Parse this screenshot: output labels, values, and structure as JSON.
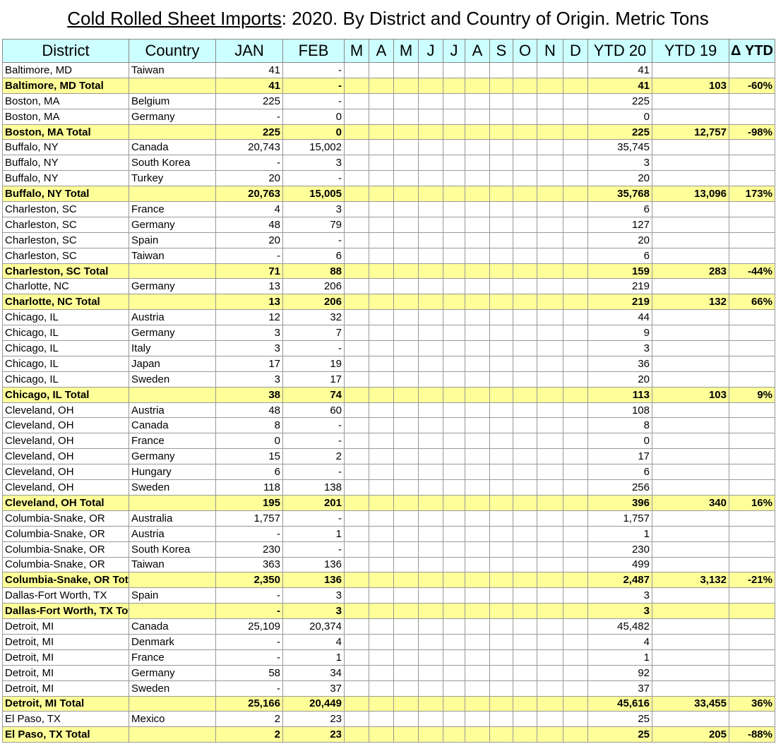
{
  "header": {
    "title_main": "Cold Rolled Sheet Imports",
    "title_rest": ": 2020. By District and Country of Origin. Metric Tons"
  },
  "table": {
    "columns": [
      "District",
      "Country",
      "JAN",
      "FEB",
      "M",
      "A",
      "M",
      "J",
      "J",
      "A",
      "S",
      "O",
      "N",
      "D",
      "YTD 20",
      "YTD 19",
      "Δ YTD"
    ],
    "rows": [
      {
        "district": "Baltimore, MD",
        "country": "Taiwan",
        "jan": "41",
        "feb": "-",
        "ytd20": "41"
      },
      {
        "district": "Baltimore, MD Total",
        "jan": "41",
        "feb": "-",
        "ytd20": "41",
        "ytd19": "103",
        "delta": "-60%",
        "total": true
      },
      {
        "district": "Boston, MA",
        "country": "Belgium",
        "jan": "225",
        "feb": "-",
        "ytd20": "225"
      },
      {
        "district": "Boston, MA",
        "country": "Germany",
        "jan": "-",
        "feb": "0",
        "ytd20": "0"
      },
      {
        "district": "Boston, MA Total",
        "jan": "225",
        "feb": "0",
        "ytd20": "225",
        "ytd19": "12,757",
        "delta": "-98%",
        "total": true
      },
      {
        "district": "Buffalo, NY",
        "country": "Canada",
        "jan": "20,743",
        "feb": "15,002",
        "ytd20": "35,745"
      },
      {
        "district": "Buffalo, NY",
        "country": "South Korea",
        "jan": "-",
        "feb": "3",
        "ytd20": "3"
      },
      {
        "district": "Buffalo, NY",
        "country": "Turkey",
        "jan": "20",
        "feb": "-",
        "ytd20": "20"
      },
      {
        "district": "Buffalo, NY Total",
        "jan": "20,763",
        "feb": "15,005",
        "ytd20": "35,768",
        "ytd19": "13,096",
        "delta": "173%",
        "total": true
      },
      {
        "district": "Charleston, SC",
        "country": "France",
        "jan": "4",
        "feb": "3",
        "ytd20": "6"
      },
      {
        "district": "Charleston, SC",
        "country": "Germany",
        "jan": "48",
        "feb": "79",
        "ytd20": "127"
      },
      {
        "district": "Charleston, SC",
        "country": "Spain",
        "jan": "20",
        "feb": "-",
        "ytd20": "20"
      },
      {
        "district": "Charleston, SC",
        "country": "Taiwan",
        "jan": "-",
        "feb": "6",
        "ytd20": "6"
      },
      {
        "district": "Charleston, SC Total",
        "jan": "71",
        "feb": "88",
        "ytd20": "159",
        "ytd19": "283",
        "delta": "-44%",
        "total": true
      },
      {
        "district": "Charlotte, NC",
        "country": "Germany",
        "jan": "13",
        "feb": "206",
        "ytd20": "219"
      },
      {
        "district": "Charlotte, NC Total",
        "jan": "13",
        "feb": "206",
        "ytd20": "219",
        "ytd19": "132",
        "delta": "66%",
        "total": true
      },
      {
        "district": "Chicago, IL",
        "country": "Austria",
        "jan": "12",
        "feb": "32",
        "ytd20": "44"
      },
      {
        "district": "Chicago, IL",
        "country": "Germany",
        "jan": "3",
        "feb": "7",
        "ytd20": "9"
      },
      {
        "district": "Chicago, IL",
        "country": "Italy",
        "jan": "3",
        "feb": "-",
        "ytd20": "3"
      },
      {
        "district": "Chicago, IL",
        "country": "Japan",
        "jan": "17",
        "feb": "19",
        "ytd20": "36"
      },
      {
        "district": "Chicago, IL",
        "country": "Sweden",
        "jan": "3",
        "feb": "17",
        "ytd20": "20"
      },
      {
        "district": "Chicago, IL Total",
        "jan": "38",
        "feb": "74",
        "ytd20": "113",
        "ytd19": "103",
        "delta": "9%",
        "total": true
      },
      {
        "district": "Cleveland, OH",
        "country": "Austria",
        "jan": "48",
        "feb": "60",
        "ytd20": "108"
      },
      {
        "district": "Cleveland, OH",
        "country": "Canada",
        "jan": "8",
        "feb": "-",
        "ytd20": "8"
      },
      {
        "district": "Cleveland, OH",
        "country": "France",
        "jan": "0",
        "feb": "-",
        "ytd20": "0"
      },
      {
        "district": "Cleveland, OH",
        "country": "Germany",
        "jan": "15",
        "feb": "2",
        "ytd20": "17"
      },
      {
        "district": "Cleveland, OH",
        "country": "Hungary",
        "jan": "6",
        "feb": "-",
        "ytd20": "6"
      },
      {
        "district": "Cleveland, OH",
        "country": "Sweden",
        "jan": "118",
        "feb": "138",
        "ytd20": "256"
      },
      {
        "district": "Cleveland, OH Total",
        "jan": "195",
        "feb": "201",
        "ytd20": "396",
        "ytd19": "340",
        "delta": "16%",
        "total": true
      },
      {
        "district": "Columbia-Snake, OR",
        "country": "Australia",
        "jan": "1,757",
        "feb": "-",
        "ytd20": "1,757"
      },
      {
        "district": "Columbia-Snake, OR",
        "country": "Austria",
        "jan": "-",
        "feb": "1",
        "ytd20": "1"
      },
      {
        "district": "Columbia-Snake, OR",
        "country": "South Korea",
        "jan": "230",
        "feb": "-",
        "ytd20": "230"
      },
      {
        "district": "Columbia-Snake, OR",
        "country": "Taiwan",
        "jan": "363",
        "feb": "136",
        "ytd20": "499"
      },
      {
        "district": "Columbia-Snake, OR Total",
        "jan": "2,350",
        "feb": "136",
        "ytd20": "2,487",
        "ytd19": "3,132",
        "delta": "-21%",
        "total": true
      },
      {
        "district": "Dallas-Fort Worth, TX",
        "country": "Spain",
        "jan": "-",
        "feb": "3",
        "ytd20": "3"
      },
      {
        "district": "Dallas-Fort Worth, TX Total",
        "jan": "-",
        "feb": "3",
        "ytd20": "3",
        "total": true
      },
      {
        "district": "Detroit, MI",
        "country": "Canada",
        "jan": "25,109",
        "feb": "20,374",
        "ytd20": "45,482"
      },
      {
        "district": "Detroit, MI",
        "country": "Denmark",
        "jan": "-",
        "feb": "4",
        "ytd20": "4"
      },
      {
        "district": "Detroit, MI",
        "country": "France",
        "jan": "-",
        "feb": "1",
        "ytd20": "1"
      },
      {
        "district": "Detroit, MI",
        "country": "Germany",
        "jan": "58",
        "feb": "34",
        "ytd20": "92"
      },
      {
        "district": "Detroit, MI",
        "country": "Sweden",
        "jan": "-",
        "feb": "37",
        "ytd20": "37"
      },
      {
        "district": "Detroit, MI Total",
        "jan": "25,166",
        "feb": "20,449",
        "ytd20": "45,616",
        "ytd19": "33,455",
        "delta": "36%",
        "total": true
      },
      {
        "district": "El Paso, TX",
        "country": "Mexico",
        "jan": "2",
        "feb": "23",
        "ytd20": "25"
      },
      {
        "district": "El Paso, TX Total",
        "jan": "2",
        "feb": "23",
        "ytd20": "25",
        "ytd19": "205",
        "delta": "-88%",
        "total": true
      }
    ]
  }
}
